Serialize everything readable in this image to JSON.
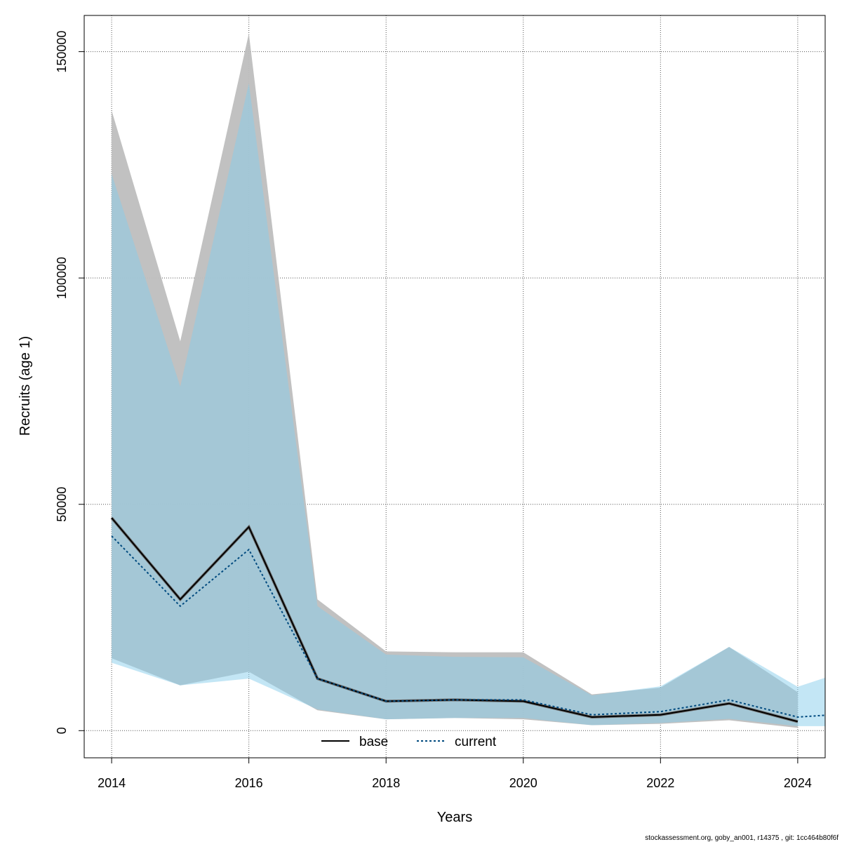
{
  "chart_data": {
    "type": "area",
    "xlabel": "Years",
    "ylabel": "Recruits (age 1)",
    "xlim": [
      2013.6,
      2024.4
    ],
    "ylim": [
      -6000,
      158000
    ],
    "x_ticks": [
      2014,
      2016,
      2018,
      2020,
      2022,
      2024
    ],
    "y_ticks": [
      0,
      50000,
      100000,
      150000
    ],
    "grid": true,
    "legend_position": "bottom-center",
    "series": [
      {
        "name": "base",
        "line_style": "solid",
        "line_color": "#000000",
        "band_color": "#bebebe",
        "x": [
          2014,
          2015,
          2016,
          2017,
          2018,
          2019,
          2020,
          2021,
          2022,
          2023,
          2024
        ],
        "values": [
          47000,
          29000,
          45000,
          11500,
          6500,
          6800,
          6500,
          3000,
          3500,
          6000,
          2000
        ],
        "lower": [
          16000,
          10000,
          13000,
          4500,
          2500,
          2800,
          2500,
          1200,
          1500,
          2300,
          600
        ],
        "upper": [
          137000,
          86000,
          154000,
          29000,
          17500,
          17300,
          17300,
          8000,
          9500,
          18500,
          8500
        ]
      },
      {
        "name": "current",
        "line_style": "dotted",
        "line_color": "#004a7f",
        "band_color": "#87ceeb",
        "x": [
          2014,
          2015,
          2016,
          2017,
          2018,
          2019,
          2020,
          2021,
          2022,
          2023,
          2024,
          2024.4
        ],
        "values": [
          43000,
          27500,
          40000,
          11500,
          6500,
          6800,
          6800,
          3500,
          4200,
          6800,
          3000,
          3400
        ],
        "lower": [
          15000,
          10000,
          11500,
          4700,
          2500,
          2800,
          2800,
          1200,
          1700,
          2600,
          1000,
          1000
        ],
        "upper": [
          123000,
          76000,
          143000,
          27500,
          16800,
          16300,
          16200,
          7800,
          9800,
          18500,
          9700,
          11700
        ]
      }
    ],
    "footer": "stockassessment.org, goby_an001, r14375 , git: 1cc464b80f6f"
  },
  "colors": {
    "base_band": "#bebebe",
    "current_band": "#87ceeb",
    "grid": "#555555"
  }
}
